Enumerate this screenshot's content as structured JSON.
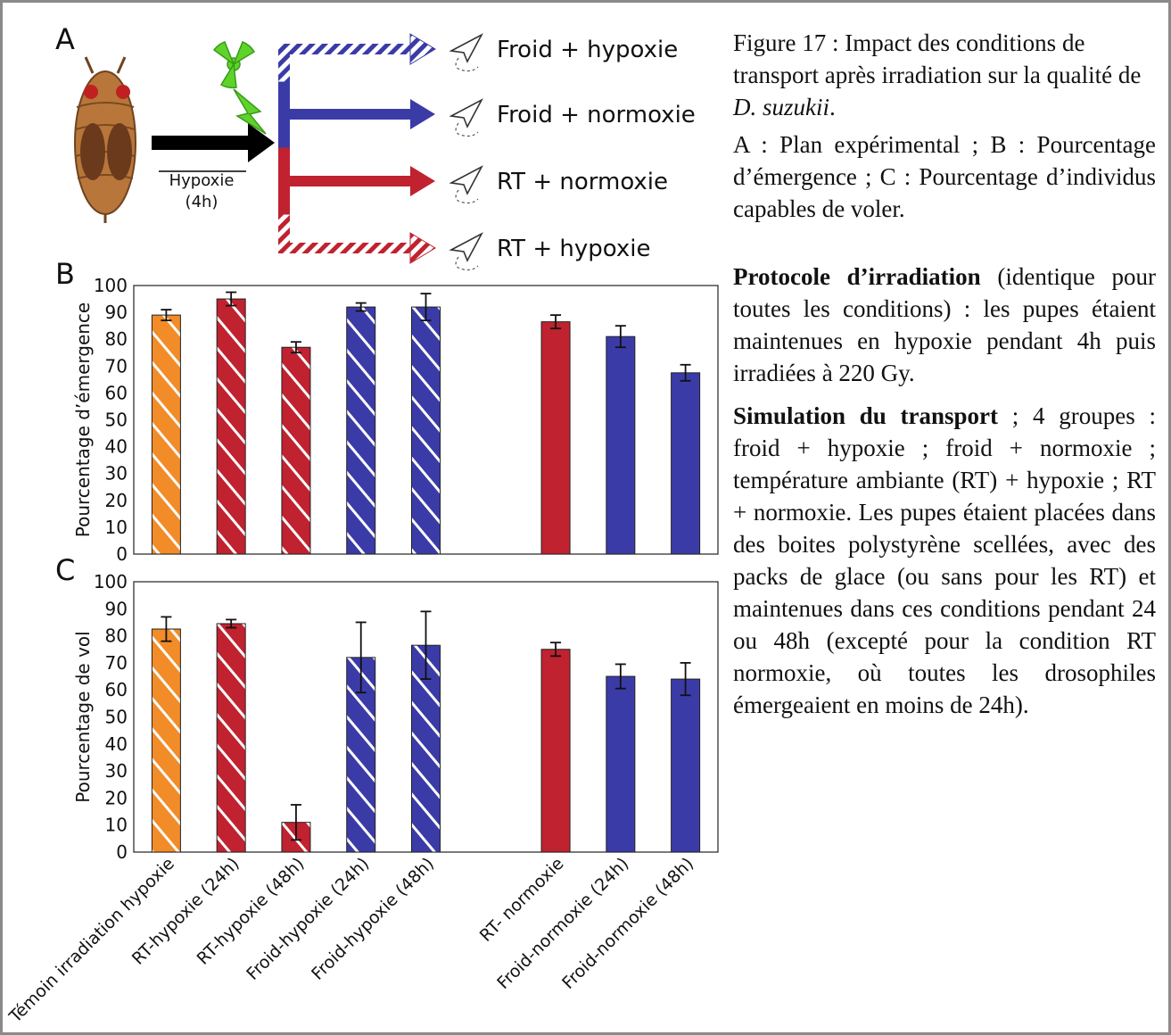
{
  "panel_labels": [
    "A",
    "B",
    "C"
  ],
  "diagram": {
    "pretreatment": [
      "Hypoxie",
      "(4h)"
    ],
    "conditions": [
      {
        "label": "Froid + hypoxie",
        "color": "#3b3ba8",
        "hatched": true
      },
      {
        "label": "Froid + normoxie",
        "color": "#3b3ba8",
        "hatched": false
      },
      {
        "label": "RT + normoxie",
        "color": "#c0222f",
        "hatched": false
      },
      {
        "label": "RT + hypoxie",
        "color": "#c0222f",
        "hatched": true
      }
    ]
  },
  "caption": {
    "title": "Figure 17 : Impact des conditions de transport après irradiation sur la qualité de ",
    "species": "D. suzukii",
    "title_end": ".",
    "legend": "A : Plan expérimental ; B : Pourcentage d’émergence ; C : Pourcentage d’individus capables de voler."
  },
  "protocol": {
    "heading": "Protocole d’irradiation",
    "text": " (identique pour toutes les conditions) : les pupes étaient maintenues en hypoxie pendant 4h puis irradiées à 220 Gy."
  },
  "simulation": {
    "heading": "Simulation du transport",
    "text": " ; 4 groupes : froid + hypoxie ; froid + normoxie ; température ambiante (RT) + hypoxie ; RT + normoxie. Les pupes étaient placées dans des boites polystyrène scellées, avec des packs de glace (ou sans pour les RT) et maintenues dans ces conditions pendant 24 ou 48h (excepté pour la condition RT normoxie, où toutes les drosophiles émergeaient en moins de 24h)."
  },
  "chart_data": [
    {
      "type": "bar",
      "y_label": "Pourcentage d’émergence",
      "values": [
        89,
        95,
        77,
        92,
        92,
        null,
        86.5,
        81,
        67.5
      ],
      "errors": [
        2,
        2.5,
        2,
        1.5,
        5,
        null,
        2.5,
        4,
        3
      ],
      "colors": [
        "#f28c28",
        "#c0222f",
        "#c0222f",
        "#3b3ba8",
        "#3b3ba8",
        null,
        "#c0222f",
        "#3b3ba8",
        "#3b3ba8"
      ],
      "hatched": [
        true,
        true,
        true,
        true,
        true,
        null,
        false,
        false,
        false
      ],
      "ylim": [
        0,
        100
      ],
      "yticks": [
        0,
        10,
        20,
        30,
        40,
        50,
        60,
        70,
        80,
        90,
        100
      ]
    },
    {
      "type": "bar",
      "y_label": "Pourcentage de vol",
      "categories": [
        "Témoin irradiation hypoxie",
        "RT-hypoxie (24h)",
        "RT-hypoxie (48h)",
        "Froid-hypoxie (24h)",
        "Froid-hypoxie (48h)",
        null,
        "RT- normoxie",
        "Froid-normoxie (24h)",
        "Froid-normoxie (48h)"
      ],
      "values": [
        82.5,
        84.5,
        11,
        72,
        76.5,
        null,
        75,
        65,
        64
      ],
      "errors": [
        4.5,
        1.5,
        6.5,
        13,
        12.5,
        null,
        2.5,
        4.5,
        6
      ],
      "colors": [
        "#f28c28",
        "#c0222f",
        "#c0222f",
        "#3b3ba8",
        "#3b3ba8",
        null,
        "#c0222f",
        "#3b3ba8",
        "#3b3ba8"
      ],
      "hatched": [
        true,
        true,
        true,
        true,
        true,
        null,
        false,
        false,
        false
      ],
      "ylim": [
        0,
        100
      ],
      "yticks": [
        0,
        10,
        20,
        30,
        40,
        50,
        60,
        70,
        80,
        90,
        100
      ]
    }
  ]
}
